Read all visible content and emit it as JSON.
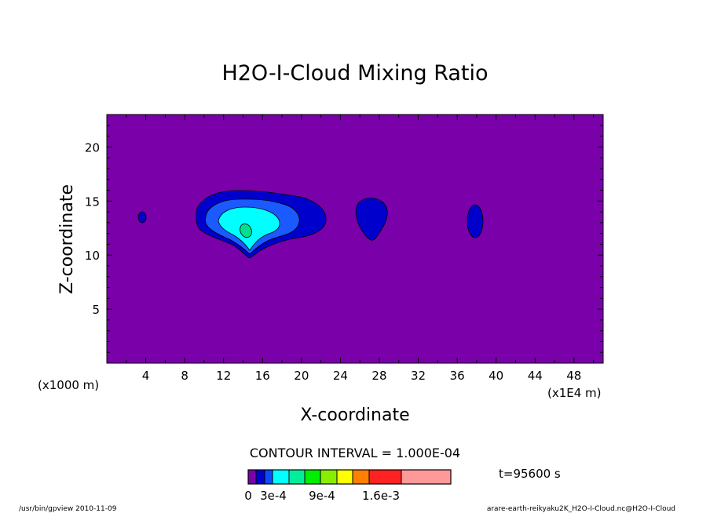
{
  "chart_data": {
    "type": "contour",
    "title": "H2O-I-Cloud Mixing Ratio",
    "xlabel": "X-coordinate",
    "ylabel": "Z-coordinate",
    "x_unit_left": "(x1000 m)",
    "x_unit_right": "(x1E4 m)",
    "x_ticks": [
      "4",
      "8",
      "12",
      "16",
      "20",
      "24",
      "28",
      "32",
      "36",
      "40",
      "44",
      "48"
    ],
    "y_ticks": [
      "5",
      "10",
      "15",
      "20"
    ],
    "xlim": [
      0,
      51
    ],
    "ylim": [
      0,
      23
    ],
    "contour_interval_text": "CONTOUR INTERVAL = 1.000E-04",
    "time_text": "t=95600 s",
    "colorbar_labels": [
      "0",
      "3e-4",
      "9e-4",
      "1.6e-3"
    ],
    "levels": [
      0,
      0.0001,
      0.0002,
      0.0003,
      0.0004,
      0.0005,
      0.0006,
      0.0007,
      0.0008,
      0.0009,
      0.0012,
      0.0016,
      0.002
    ],
    "colorbar_colors": [
      "#7a00aa",
      "#0000cc",
      "#0c4cff",
      "#00ffff",
      "#00ee99",
      "#00ee00",
      "#88ee00",
      "#ffff00",
      "#ff8000",
      "#ff2222",
      "#ff9999"
    ],
    "field_colors": {
      "background": "#7a00aa",
      "level1": "#0000cc",
      "level2": "#1a5aff",
      "level3": "#00ffff",
      "level4": "#00e090"
    },
    "clouds": [
      {
        "x": 3.7,
        "z": 13.5,
        "max_level": 1
      },
      {
        "x": 15.0,
        "z": 13.0,
        "max_level": 4
      },
      {
        "x": 27.0,
        "z": 13.7,
        "max_level": 1
      },
      {
        "x": 38.0,
        "z": 13.0,
        "max_level": 1
      }
    ]
  },
  "footer": {
    "left": "/usr/bin/gpview  2010-11-09",
    "right": "arare-earth-reikyaku2K_H2O-I-Cloud.nc@H2O-I-Cloud"
  }
}
